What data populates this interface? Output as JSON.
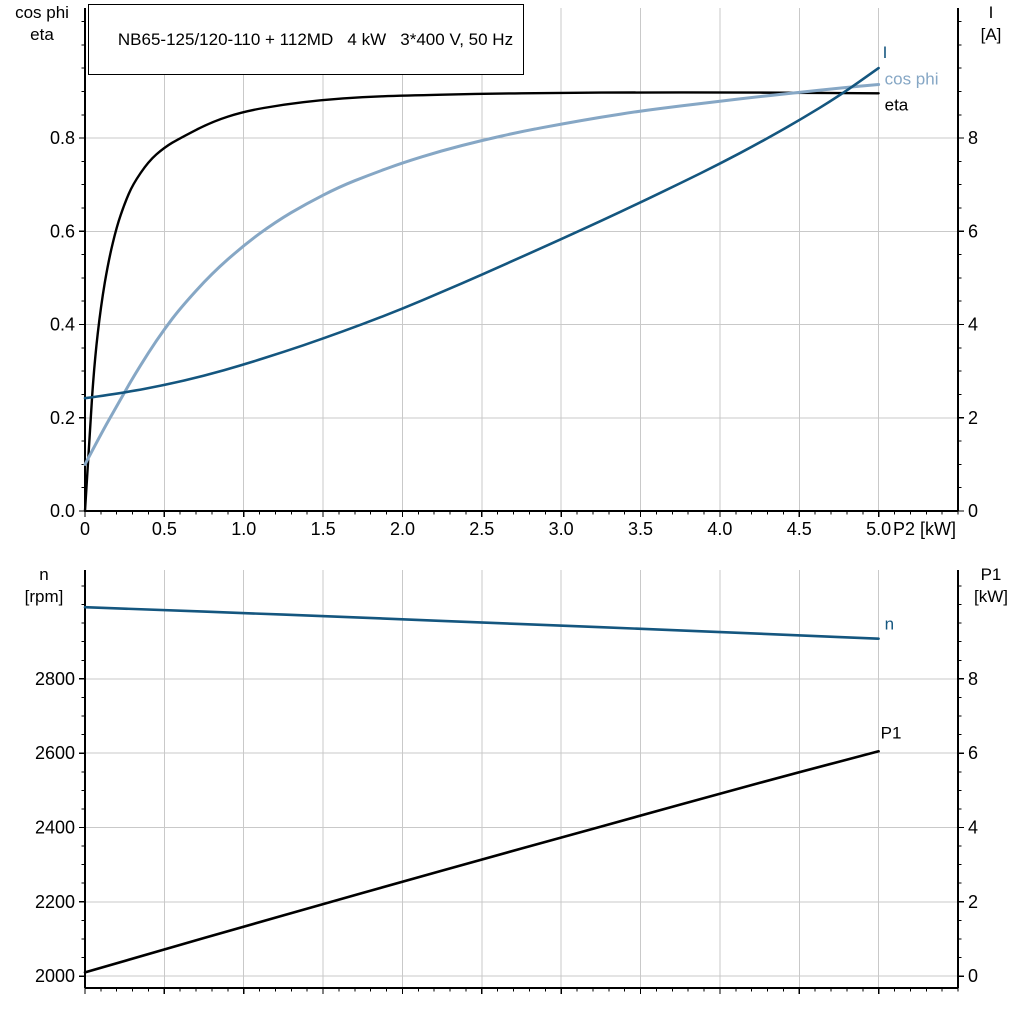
{
  "title_box": {
    "text": "NB65-125/120-110 + 112MD   4 kW   3*400 V, 50 Hz"
  },
  "axis_headers": {
    "top_left_line1": "cos phi",
    "top_left_line2": "eta",
    "top_right_line1": "I",
    "top_right_line2": "[A]",
    "bottom_left_line1": "n",
    "bottom_left_line2": "[rpm]",
    "bottom_right_line1": "P1",
    "bottom_right_line2": "[kW]"
  },
  "colors": {
    "black": "#000000",
    "dark_blue": "#14567f",
    "light_blue": "#86a7c5",
    "grid": "#c9c9c9",
    "axis": "#000000",
    "background": "#ffffff"
  },
  "chart_data": [
    {
      "type": "line",
      "name": "p2-performance-panel",
      "title": "NB65-125/120-110 + 112MD   4 kW   3*400 V, 50 Hz",
      "xlabel": "P2 [kW]",
      "grid": true,
      "x_axis": {
        "lim": [
          0,
          5.5
        ],
        "ticks": [
          0,
          0.5,
          1.0,
          1.5,
          2.0,
          2.5,
          3.0,
          3.5,
          4.0,
          4.5,
          5.0
        ],
        "tick_labels": [
          "0",
          "0.5",
          "1.0",
          "1.5",
          "2.0",
          "2.5",
          "3.0",
          "3.5",
          "4.0",
          "4.5",
          "5.0"
        ],
        "minor_step": 0.1,
        "show_tick_labels": true
      },
      "left_axis": {
        "name": "cos phi / eta",
        "lim": [
          0,
          1.079
        ],
        "ticks": [
          0,
          0.2,
          0.4,
          0.6,
          0.8
        ],
        "tick_labels": [
          "0.0",
          "0.2",
          "0.4",
          "0.6",
          "0.8"
        ],
        "minor_step": 0.05
      },
      "right_axis": {
        "name": "I [A]",
        "lim": [
          0,
          10.79
        ],
        "ticks": [
          0,
          2,
          4,
          6,
          8
        ],
        "tick_labels": [
          "0",
          "2",
          "4",
          "6",
          "8"
        ],
        "minor_step": 0.5
      },
      "series": [
        {
          "name": "eta",
          "label": "eta",
          "axis": "left",
          "color_key": "black",
          "width": 2.4,
          "x": [
            0,
            0.03,
            0.06,
            0.1,
            0.15,
            0.2,
            0.25,
            0.3,
            0.4,
            0.5,
            0.6,
            0.8,
            1.0,
            1.25,
            1.5,
            1.75,
            2.0,
            2.5,
            3.0,
            3.5,
            4.0,
            4.5,
            5.0
          ],
          "y": [
            0,
            0.17,
            0.32,
            0.44,
            0.54,
            0.61,
            0.66,
            0.7,
            0.75,
            0.78,
            0.8,
            0.835,
            0.857,
            0.872,
            0.882,
            0.888,
            0.891,
            0.895,
            0.897,
            0.898,
            0.898,
            0.897,
            0.896
          ]
        },
        {
          "name": "cos phi",
          "label": "cos phi",
          "axis": "left",
          "color_key": "light_blue",
          "width": 3,
          "x": [
            0,
            0.1,
            0.2,
            0.3,
            0.4,
            0.5,
            0.6,
            0.8,
            1.0,
            1.2,
            1.4,
            1.6,
            1.8,
            2.0,
            2.25,
            2.5,
            2.75,
            3.0,
            3.25,
            3.5,
            3.75,
            4.0,
            4.25,
            4.5,
            4.75,
            5.0
          ],
          "y": [
            0.1,
            0.165,
            0.225,
            0.285,
            0.34,
            0.39,
            0.435,
            0.51,
            0.57,
            0.62,
            0.66,
            0.695,
            0.722,
            0.747,
            0.773,
            0.795,
            0.814,
            0.83,
            0.845,
            0.858,
            0.869,
            0.879,
            0.889,
            0.898,
            0.907,
            0.915
          ]
        },
        {
          "name": "I",
          "label": "I",
          "axis": "right",
          "color_key": "dark_blue",
          "width": 2.6,
          "x": [
            0,
            0.25,
            0.5,
            0.75,
            1.0,
            1.25,
            1.5,
            1.75,
            2.0,
            2.25,
            2.5,
            2.75,
            3.0,
            3.25,
            3.5,
            3.75,
            4.0,
            4.25,
            4.5,
            4.75,
            5.0
          ],
          "y": [
            2.42,
            2.54,
            2.7,
            2.9,
            3.14,
            3.41,
            3.7,
            4.01,
            4.34,
            4.7,
            5.07,
            5.45,
            5.83,
            6.22,
            6.62,
            7.03,
            7.45,
            7.9,
            8.38,
            8.9,
            9.5
          ]
        }
      ]
    },
    {
      "type": "line",
      "name": "speed-power-panel",
      "title": "",
      "xlabel": "",
      "grid": true,
      "x_axis": {
        "lim": [
          0,
          5.5
        ],
        "ticks": [
          0,
          0.5,
          1.0,
          1.5,
          2.0,
          2.5,
          3.0,
          3.5,
          4.0,
          4.5,
          5.0
        ],
        "tick_labels": null,
        "minor_step": 0.1,
        "show_tick_labels": false
      },
      "left_axis": {
        "name": "n [rpm]",
        "lim": [
          1968,
          3093
        ],
        "ticks": [
          2000,
          2200,
          2400,
          2600,
          2800
        ],
        "tick_labels": [
          "2000",
          "2200",
          "2400",
          "2600",
          "2800"
        ],
        "minor_step": 50
      },
      "right_axis": {
        "name": "P1 [kW]",
        "lim": [
          -0.32,
          10.93
        ],
        "ticks": [
          0,
          2,
          4,
          6,
          8
        ],
        "tick_labels": [
          "0",
          "2",
          "4",
          "6",
          "8"
        ],
        "minor_step": 0.5
      },
      "series": [
        {
          "name": "n",
          "label": "n",
          "axis": "left",
          "color_key": "dark_blue",
          "width": 2.6,
          "x": [
            0,
            0.5,
            1.0,
            1.5,
            2.0,
            2.5,
            3.0,
            3.5,
            4.0,
            4.5,
            5.0
          ],
          "y": [
            2993,
            2985,
            2977,
            2969,
            2960,
            2952,
            2943,
            2935,
            2926,
            2917,
            2908
          ]
        },
        {
          "name": "P1",
          "label": "P1",
          "axis": "right",
          "color_key": "black",
          "width": 2.6,
          "x": [
            0,
            0.5,
            1.0,
            1.5,
            2.0,
            2.5,
            3.0,
            3.5,
            4.0,
            4.5,
            5.0
          ],
          "y": [
            0.1,
            0.72,
            1.33,
            1.94,
            2.54,
            3.14,
            3.73,
            4.32,
            4.91,
            5.49,
            6.05
          ]
        }
      ]
    }
  ]
}
